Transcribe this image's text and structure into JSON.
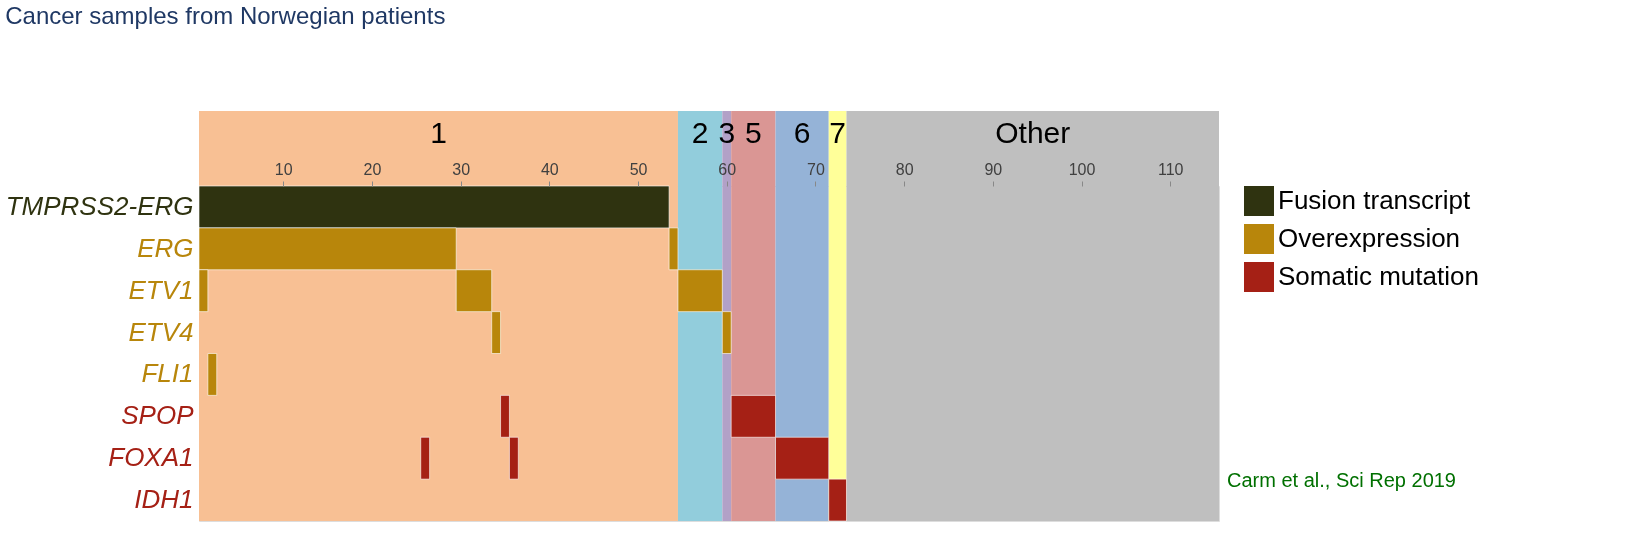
{
  "chart_data": {
    "type": "bar",
    "orientation": "horizontal",
    "title": "Cancer samples from Norwegian patients",
    "categories": [
      "TMPRSS2-ERG",
      "ERG",
      "ETV1",
      "ETV4",
      "FLI1",
      "SPOP",
      "FOXA1",
      "IDH1"
    ],
    "series": [
      {
        "name": "Fusion transcript",
        "color": "#2f3310",
        "base": [
          0.5,
          null,
          null,
          null,
          null,
          null,
          null,
          null
        ],
        "values": [
          53,
          null,
          null,
          null,
          null,
          null,
          null,
          null
        ]
      },
      {
        "name": "Overexpression",
        "color": "#b8860b",
        "base": [
          null,
          0.5,
          0.5,
          33.5,
          1.5,
          null,
          null,
          null
        ],
        "values": [
          null,
          29,
          1,
          1,
          1,
          null,
          null,
          null
        ]
      },
      {
        "color": "#b8860b",
        "base": [
          null,
          53.5,
          29.5,
          59.5,
          null,
          null,
          null,
          null
        ],
        "values": [
          null,
          1,
          4,
          1,
          null,
          null,
          null,
          null
        ]
      },
      {
        "color": "#b8860b",
        "base": [
          null,
          null,
          54.5,
          null,
          null,
          null,
          null,
          null
        ],
        "values": [
          null,
          null,
          5,
          null,
          null,
          null,
          null,
          null
        ]
      },
      {
        "name": "Somatic mutation",
        "color": "#a52015",
        "base": [
          null,
          null,
          null,
          null,
          null,
          34.5,
          25.5,
          71.5
        ],
        "values": [
          null,
          null,
          null,
          null,
          null,
          1,
          1,
          2
        ]
      },
      {
        "color": "#a52015",
        "base": [
          null,
          null,
          null,
          null,
          null,
          60.5,
          35.5,
          null
        ],
        "values": [
          null,
          null,
          null,
          null,
          null,
          5,
          1,
          null
        ]
      },
      {
        "color": "#a52015",
        "base": [
          null,
          null,
          null,
          null,
          null,
          null,
          65.5,
          null
        ],
        "values": [
          null,
          null,
          null,
          null,
          null,
          null,
          6,
          null
        ]
      }
    ],
    "xlim": [
      0.5,
      115.5
    ],
    "xticks": [
      10,
      20,
      30,
      40,
      50,
      60,
      70,
      80,
      90,
      100,
      110
    ],
    "bands": [
      {
        "axis": "x",
        "from": 0.5,
        "to": 54.5,
        "label": "1",
        "color": "#f8c094"
      },
      {
        "axis": "x",
        "from": 54.5,
        "to": 59.5,
        "label": "2",
        "color": "#92cddc"
      },
      {
        "axis": "x",
        "from": 59.5,
        "to": 60.5,
        "label": "3",
        "color": "#b2a1c7"
      },
      {
        "axis": "x",
        "from": 60.5,
        "to": 65.5,
        "label": "5",
        "color": "#da9694"
      },
      {
        "axis": "x",
        "from": 65.5,
        "to": 71.5,
        "label": "6",
        "color": "#95b3d7"
      },
      {
        "axis": "x",
        "from": 71.5,
        "to": 73.5,
        "label": "7",
        "color": "#ffff99"
      },
      {
        "axis": "x",
        "from": 73.5,
        "to": 115.5,
        "label": "Other",
        "color": "#bfbfbf"
      }
    ],
    "annotations": [
      "Carm et al., Sci Rep 2019"
    ],
    "legend": "right",
    "grid": false
  }
}
